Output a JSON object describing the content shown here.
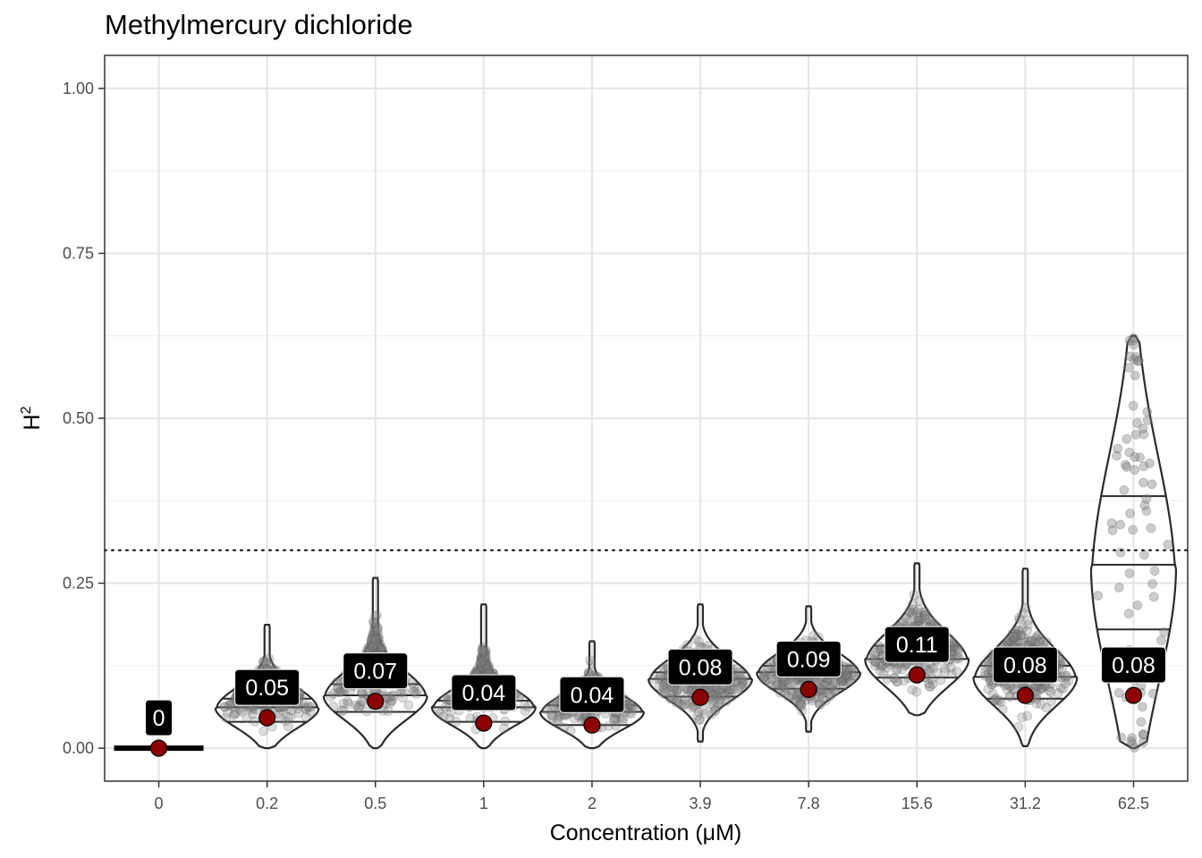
{
  "chart_data": {
    "type": "violin",
    "title": "Methylmercury dichloride",
    "xlabel": "Concentration (μM)",
    "ylabel": "H",
    "ylabel_superscript": "2",
    "ylim": [
      -0.05,
      1.05
    ],
    "yticks": [
      0.0,
      0.25,
      0.5,
      0.75,
      1.0
    ],
    "ytick_labels": [
      "0.00",
      "0.25",
      "0.50",
      "0.75",
      "1.00"
    ],
    "threshold_line": 0.3,
    "grid": true,
    "categories": [
      "0",
      "0.2",
      "0.5",
      "1",
      "2",
      "3.9",
      "7.8",
      "15.6",
      "31.2",
      "62.5"
    ],
    "mean_values": [
      0.0,
      0.046,
      0.071,
      0.038,
      0.035,
      0.077,
      0.089,
      0.111,
      0.08,
      0.08
    ],
    "mean_labels": [
      "0",
      "0.05",
      "0.07",
      "0.04",
      "0.04",
      "0.08",
      "0.09",
      "0.11",
      "0.08",
      "0.08"
    ],
    "distribution_max": [
      0.0,
      0.187,
      0.258,
      0.218,
      0.162,
      0.218,
      0.215,
      0.28,
      0.272,
      0.625
    ],
    "distribution_min": [
      0.0,
      0.0,
      0.0,
      0.0,
      0.0,
      0.01,
      0.025,
      0.05,
      0.003,
      0.0
    ],
    "quartiles": [
      [
        0.0,
        0.0,
        0.0
      ],
      [
        0.04,
        0.062,
        0.075
      ],
      [
        0.055,
        0.08,
        0.097
      ],
      [
        0.04,
        0.062,
        0.072
      ],
      [
        0.035,
        0.055,
        0.065
      ],
      [
        0.078,
        0.105,
        0.115
      ],
      [
        0.09,
        0.115,
        0.125
      ],
      [
        0.107,
        0.135,
        0.155
      ],
      [
        0.075,
        0.108,
        0.125
      ],
      [
        0.18,
        0.278,
        0.382
      ]
    ],
    "colors": {
      "mean_point": "#8b0000",
      "label_bg": "#000000",
      "violin_stroke": "#2b2b2b",
      "points": "#808080"
    }
  }
}
